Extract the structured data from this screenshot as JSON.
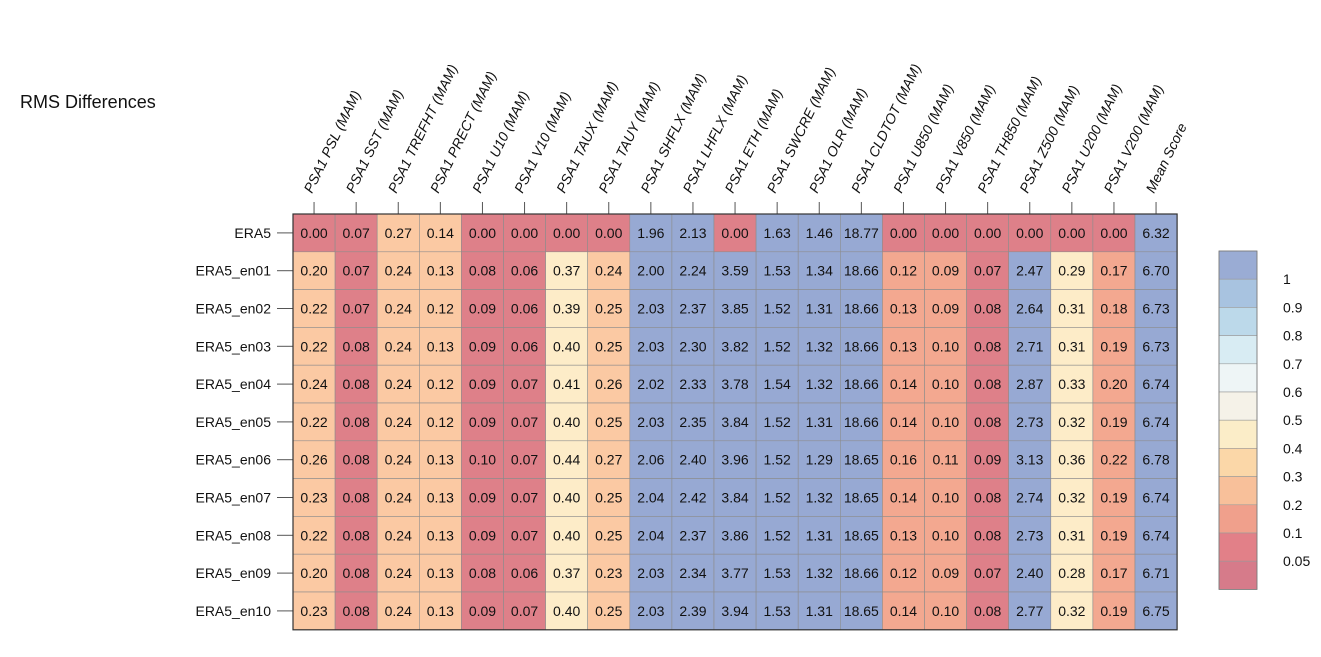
{
  "chart_data": {
    "type": "heatmap",
    "title": "RMS Differences",
    "columns": [
      "PSA1 PSL (MAM)",
      "PSA1 SST (MAM)",
      "PSA1 TREFHT (MAM)",
      "PSA1 PRECT (MAM)",
      "PSA1 U10 (MAM)",
      "PSA1 V10 (MAM)",
      "PSA1 TAUX (MAM)",
      "PSA1 TAUY (MAM)",
      "PSA1 SHFLX (MAM)",
      "PSA1 LHFLX (MAM)",
      "PSA1 ETH (MAM)",
      "PSA1 SWCRE (MAM)",
      "PSA1 OLR (MAM)",
      "PSA1 CLDTOT (MAM)",
      "PSA1 U850 (MAM)",
      "PSA1 V850 (MAM)",
      "PSA1 TH850 (MAM)",
      "PSA1 Z500 (MAM)",
      "PSA1 U200 (MAM)",
      "PSA1 V200 (MAM)",
      "Mean Score"
    ],
    "rows": [
      "ERA5",
      "ERA5_en01",
      "ERA5_en02",
      "ERA5_en03",
      "ERA5_en04",
      "ERA5_en05",
      "ERA5_en06",
      "ERA5_en07",
      "ERA5_en08",
      "ERA5_en09",
      "ERA5_en10"
    ],
    "values": [
      [
        "0.00",
        "0.07",
        "0.27",
        "0.14",
        "0.00",
        "0.00",
        "0.00",
        "0.00",
        "1.96",
        "2.13",
        "0.00",
        "1.63",
        "1.46",
        "18.77",
        "0.00",
        "0.00",
        "0.00",
        "0.00",
        "0.00",
        "0.00",
        "6.32"
      ],
      [
        "0.20",
        "0.07",
        "0.24",
        "0.13",
        "0.08",
        "0.06",
        "0.37",
        "0.24",
        "2.00",
        "2.24",
        "3.59",
        "1.53",
        "1.34",
        "18.66",
        "0.12",
        "0.09",
        "0.07",
        "2.47",
        "0.29",
        "0.17",
        "6.70"
      ],
      [
        "0.22",
        "0.07",
        "0.24",
        "0.12",
        "0.09",
        "0.06",
        "0.39",
        "0.25",
        "2.03",
        "2.37",
        "3.85",
        "1.52",
        "1.31",
        "18.66",
        "0.13",
        "0.09",
        "0.08",
        "2.64",
        "0.31",
        "0.18",
        "6.73"
      ],
      [
        "0.22",
        "0.08",
        "0.24",
        "0.13",
        "0.09",
        "0.06",
        "0.40",
        "0.25",
        "2.03",
        "2.30",
        "3.82",
        "1.52",
        "1.32",
        "18.66",
        "0.13",
        "0.10",
        "0.08",
        "2.71",
        "0.31",
        "0.19",
        "6.73"
      ],
      [
        "0.24",
        "0.08",
        "0.24",
        "0.12",
        "0.09",
        "0.07",
        "0.41",
        "0.26",
        "2.02",
        "2.33",
        "3.78",
        "1.54",
        "1.32",
        "18.66",
        "0.14",
        "0.10",
        "0.08",
        "2.87",
        "0.33",
        "0.20",
        "6.74"
      ],
      [
        "0.22",
        "0.08",
        "0.24",
        "0.12",
        "0.09",
        "0.07",
        "0.40",
        "0.25",
        "2.03",
        "2.35",
        "3.84",
        "1.52",
        "1.31",
        "18.66",
        "0.14",
        "0.10",
        "0.08",
        "2.73",
        "0.32",
        "0.19",
        "6.74"
      ],
      [
        "0.26",
        "0.08",
        "0.24",
        "0.13",
        "0.10",
        "0.07",
        "0.44",
        "0.27",
        "2.06",
        "2.40",
        "3.96",
        "1.52",
        "1.29",
        "18.65",
        "0.16",
        "0.11",
        "0.09",
        "3.13",
        "0.36",
        "0.22",
        "6.78"
      ],
      [
        "0.23",
        "0.08",
        "0.24",
        "0.13",
        "0.09",
        "0.07",
        "0.40",
        "0.25",
        "2.04",
        "2.42",
        "3.84",
        "1.52",
        "1.32",
        "18.65",
        "0.14",
        "0.10",
        "0.08",
        "2.74",
        "0.32",
        "0.19",
        "6.74"
      ],
      [
        "0.22",
        "0.08",
        "0.24",
        "0.13",
        "0.09",
        "0.07",
        "0.40",
        "0.25",
        "2.04",
        "2.37",
        "3.86",
        "1.52",
        "1.31",
        "18.65",
        "0.13",
        "0.10",
        "0.08",
        "2.73",
        "0.31",
        "0.19",
        "6.74"
      ],
      [
        "0.20",
        "0.08",
        "0.24",
        "0.13",
        "0.08",
        "0.06",
        "0.37",
        "0.23",
        "2.03",
        "2.34",
        "3.77",
        "1.53",
        "1.32",
        "18.66",
        "0.12",
        "0.09",
        "0.07",
        "2.40",
        "0.28",
        "0.17",
        "6.71"
      ],
      [
        "0.23",
        "0.08",
        "0.24",
        "0.13",
        "0.09",
        "0.07",
        "0.40",
        "0.25",
        "2.03",
        "2.39",
        "3.94",
        "1.53",
        "1.31",
        "18.65",
        "0.14",
        "0.10",
        "0.08",
        "2.77",
        "0.32",
        "0.19",
        "6.75"
      ]
    ],
    "colorbar": {
      "labels": [
        "1",
        "0.9",
        "0.8",
        "0.7",
        "0.6",
        "0.5",
        "0.4",
        "0.3",
        "0.2",
        "0.1",
        "0.05"
      ],
      "colors_top_to_bottom": [
        "#9aacd4",
        "#a8c3e0",
        "#bcd9ea",
        "#d8ecf3",
        "#eef5f6",
        "#f5f2e8",
        "#fbedc8",
        "#fbd7a8",
        "#f8c09a",
        "#f0a08c",
        "#e28088",
        "#d67b8a"
      ]
    }
  }
}
